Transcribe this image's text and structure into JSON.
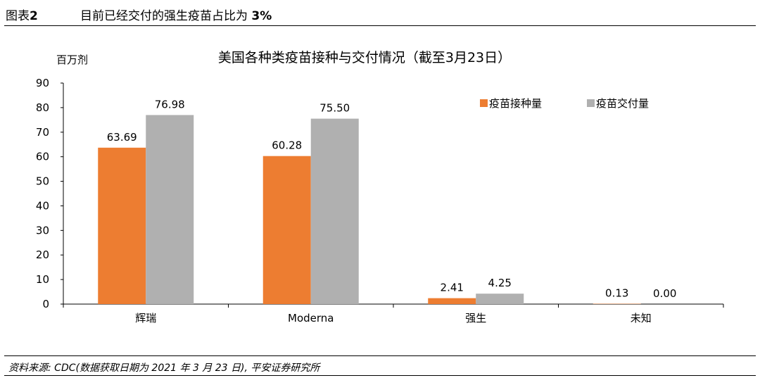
{
  "figure": {
    "label_prefix": "图表",
    "label_number": "2",
    "title_text": "目前已经交付的强生疫苗占比为 ",
    "title_pct": "3%"
  },
  "source": "资料来源: CDC(数据获取日期为 2021 年 3 月 23 日), 平安证券研究所",
  "colors": {
    "administered": "#ED7D31",
    "delivered": "#B0B0B0"
  },
  "chart_data": {
    "type": "bar",
    "title": "美国各种类疫苗接种与交付情况（截至3月23日）",
    "unit_label": "百万剂",
    "xlabel": "",
    "ylabel": "",
    "categories": [
      "辉瑞",
      "Moderna",
      "强生",
      "未知"
    ],
    "series": [
      {
        "name": "疫苗接种量",
        "values": [
          63.69,
          60.28,
          2.41,
          0.13
        ],
        "labels": [
          "63.69",
          "60.28",
          "2.41",
          "0.13"
        ]
      },
      {
        "name": "疫苗交付量",
        "values": [
          76.98,
          75.5,
          4.25,
          0.0
        ],
        "labels": [
          "76.98",
          "75.50",
          "4.25",
          "0.00"
        ]
      }
    ],
    "ylim": [
      0,
      90
    ],
    "yticks": [
      0,
      10,
      20,
      30,
      40,
      50,
      60,
      70,
      80,
      90
    ],
    "grid": false,
    "legend_position": "top-right"
  }
}
